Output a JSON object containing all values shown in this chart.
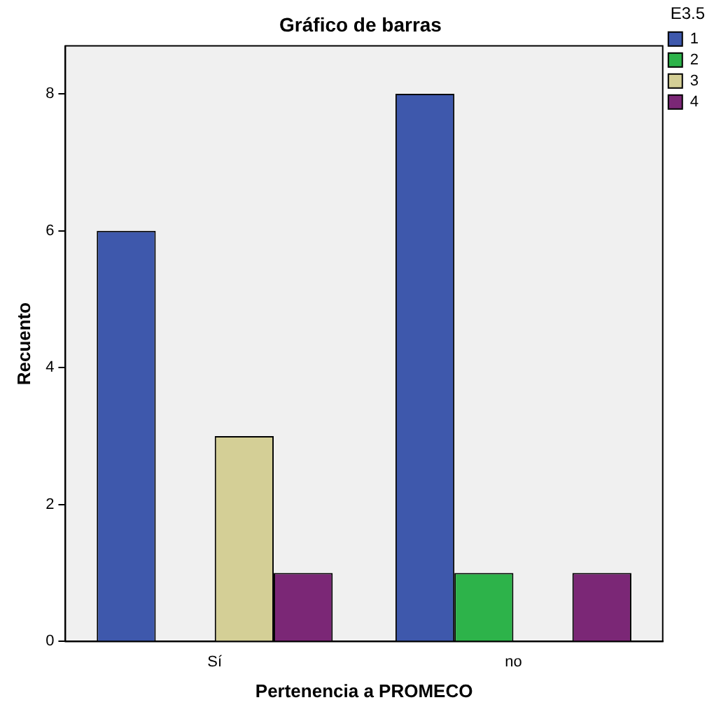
{
  "chart_data": {
    "type": "bar",
    "title": "Gráfico de barras",
    "xlabel": "Pertenencia a PROMECO",
    "ylabel": "Recuento",
    "legend_title": "E3.5",
    "categories": [
      "Sí",
      "no"
    ],
    "series": [
      {
        "name": "1",
        "color": "#3e58ac",
        "values": [
          6,
          8
        ]
      },
      {
        "name": "2",
        "color": "#2db34a",
        "values": [
          null,
          1
        ]
      },
      {
        "name": "3",
        "color": "#d4cf96",
        "values": [
          3,
          null
        ]
      },
      {
        "name": "4",
        "color": "#7b2776",
        "values": [
          1,
          1
        ]
      }
    ],
    "ylim": [
      0,
      8.7
    ],
    "yticks": [
      0,
      2,
      4,
      6,
      8
    ],
    "grid": false,
    "legend": "top right"
  }
}
